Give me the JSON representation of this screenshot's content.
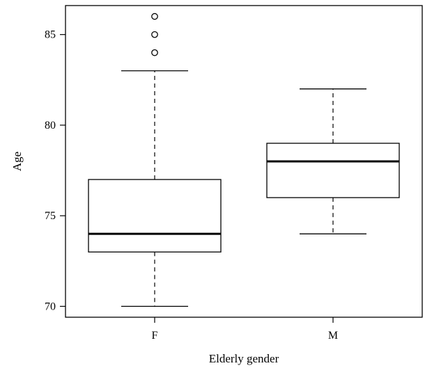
{
  "chart_data": {
    "type": "box",
    "xlabel": "Elderly gender",
    "ylabel": "Age",
    "ylim": [
      69.4,
      86.6
    ],
    "yticks": [
      70,
      75,
      80,
      85
    ],
    "categories": [
      "F",
      "M"
    ],
    "boxes": [
      {
        "category": "F",
        "whisker_low": 70,
        "q1": 73,
        "median": 74,
        "q3": 77,
        "whisker_high": 83,
        "outliers": [
          84,
          85,
          86
        ]
      },
      {
        "category": "M",
        "whisker_low": 74,
        "q1": 76,
        "median": 78,
        "q3": 79,
        "whisker_high": 82,
        "outliers": []
      }
    ],
    "grid": false
  }
}
